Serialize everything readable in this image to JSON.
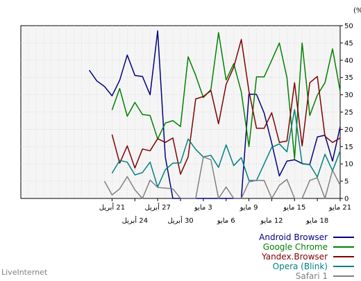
{
  "chart_data": {
    "type": "line",
    "ylabel": "الحصة (%)",
    "ylim": [
      0,
      50
    ],
    "y_ticks": [
      0,
      5,
      10,
      15,
      20,
      25,
      30,
      35,
      40,
      45,
      50
    ],
    "grid": true,
    "legend_position": "bottom-right",
    "x_count": 43,
    "x_tick_labels": [
      {
        "i": 0,
        "text": "21 مايو",
        "row": 1
      },
      {
        "i": 3,
        "text": "18 مايو",
        "row": 2
      },
      {
        "i": 6,
        "text": "15 مايو",
        "row": 1
      },
      {
        "i": 9,
        "text": "12 مايو",
        "row": 2
      },
      {
        "i": 12,
        "text": "9 مايو",
        "row": 1
      },
      {
        "i": 15,
        "text": "6 مايو",
        "row": 2
      },
      {
        "i": 18,
        "text": "3 مايو",
        "row": 1
      },
      {
        "i": 21,
        "text": "30 أبريل",
        "row": 2
      },
      {
        "i": 24,
        "text": "27 أبريل",
        "row": 1
      },
      {
        "i": 27,
        "text": "24 أبريل",
        "row": 2
      },
      {
        "i": 30,
        "text": "21 أبريل",
        "row": 1
      }
    ],
    "series": [
      {
        "name": "Android Browser",
        "color": "#000080",
        "values": [
          20.8,
          10.8,
          18.3,
          17.8,
          9.8,
          10.1,
          11.2,
          10.8,
          6.5,
          16.0,
          24.7,
          30.1,
          30.2,
          0,
          0,
          0,
          0,
          0,
          0,
          0,
          0,
          0,
          0,
          12.0,
          48.5,
          30.0,
          35.3,
          35.6,
          41.5,
          34.2,
          29.7,
          32.4,
          34.0,
          37.1
        ]
      },
      {
        "name": "Google Chrome",
        "color": "#008000",
        "values": [
          31.0,
          43.3,
          33.5,
          29.9,
          24.0,
          45.0,
          11.5,
          35.0,
          45.0,
          40.0,
          35.2,
          35.2,
          15.0,
          30.8,
          39.0,
          34.3,
          48.0,
          31.5,
          29.2,
          35.6,
          41.0,
          20.8,
          22.5,
          21.8,
          17.2,
          24.0,
          24.3,
          27.8,
          23.8,
          31.8,
          25.6
        ]
      },
      {
        "name": "Yandex.Browser",
        "color": "#800000",
        "values": [
          17.5,
          16.2,
          18.0,
          35.3,
          33.5,
          15.2,
          33.5,
          16.6,
          16.2,
          24.8,
          20.3,
          20.3,
          31.0,
          46.0,
          38.0,
          33.0,
          21.6,
          31.2,
          29.5,
          28.8,
          12.0,
          7.0,
          17.5,
          16.2,
          17.3,
          13.8,
          14.3,
          8.8,
          15.2,
          10.2,
          18.5
        ]
      },
      {
        "name": "Opera (Blink)",
        "color": "#008080",
        "values": [
          13.8,
          8.0,
          12.8,
          6.2,
          9.8,
          10.0,
          25.7,
          13.5,
          15.8,
          14.8,
          10.0,
          5.2,
          5.2,
          11.8,
          9.5,
          15.5,
          9.0,
          12.5,
          12.0,
          14.2,
          17.2,
          10.3,
          10.2,
          8.3,
          3.3,
          10.5,
          7.5,
          6.8,
          10.5,
          11.0,
          7.3
        ]
      },
      {
        "name": "Safari 1",
        "color": "#808080",
        "values": [
          3.8,
          8.2,
          0,
          6.0,
          5.2,
          0,
          0,
          5.5,
          3.8,
          0,
          5.2,
          5.2,
          4.8,
          0,
          0,
          3.3,
          0,
          11.2,
          12.0,
          0,
          0,
          0,
          2.8,
          3.0,
          3.2,
          5.3,
          0,
          2.5,
          6.3,
          2.8,
          1.0,
          5.0
        ]
      }
    ]
  },
  "footer": "LiveInternet"
}
